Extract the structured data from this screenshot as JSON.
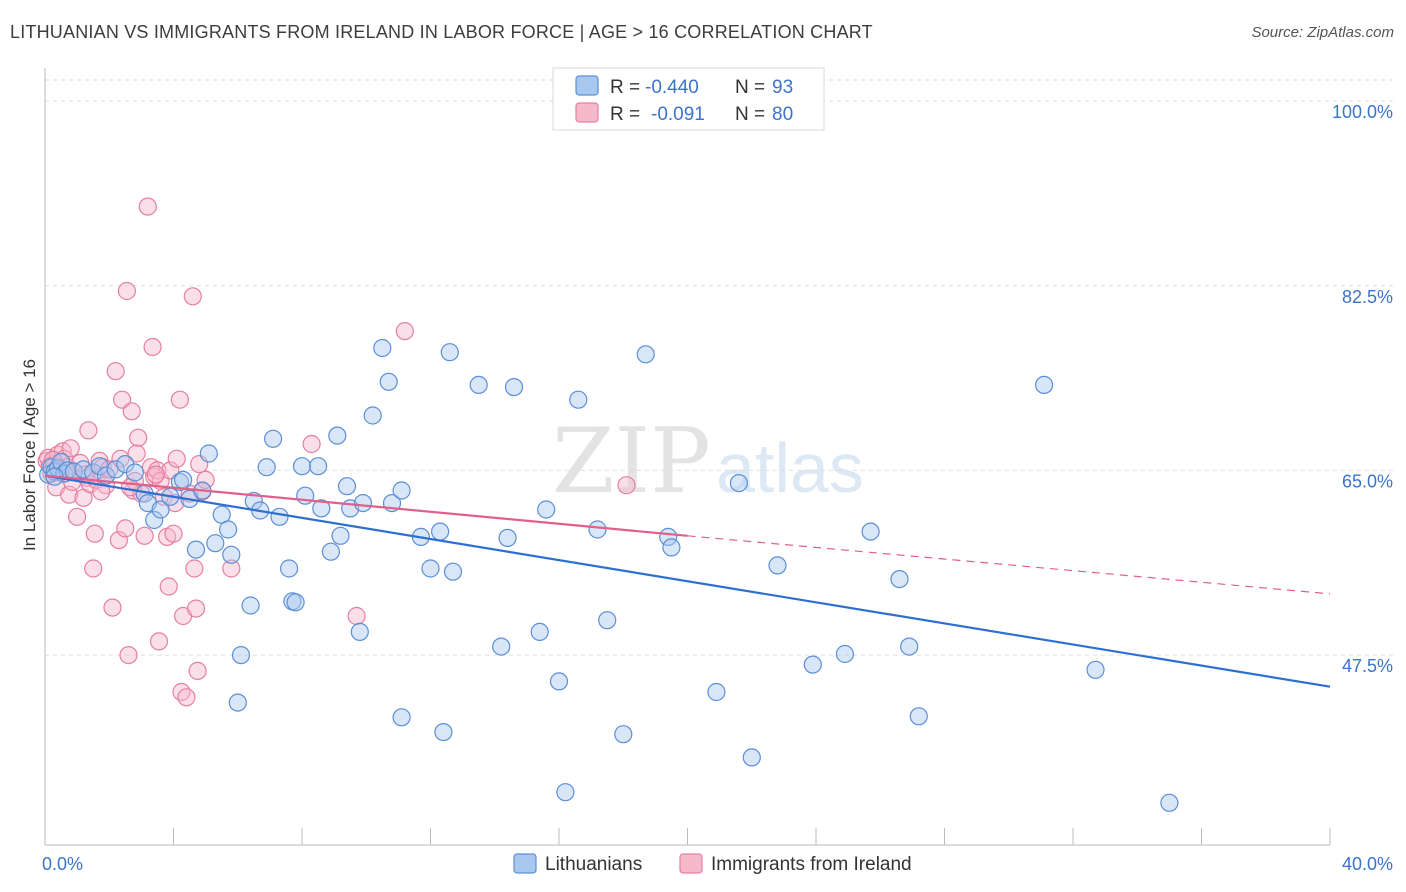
{
  "header": {
    "title": "LITHUANIAN VS IMMIGRANTS FROM IRELAND IN LABOR FORCE | AGE > 16 CORRELATION CHART",
    "source": "Source: ZipAtlas.com"
  },
  "colors": {
    "blue_fill": "#a9c8ef",
    "blue_stroke": "#5b8fd6",
    "blue_line": "#2d6fd0",
    "pink_fill": "#f6b9cc",
    "pink_stroke": "#e57fa1",
    "pink_line": "#e0608a",
    "grid": "#dddddd",
    "tick_text": "#3b74c8"
  },
  "watermark": {
    "part1": "ZIP",
    "part2": "atlas"
  },
  "legend": {
    "rows": [
      {
        "r_label": "R =",
        "r_value": "-0.440",
        "n_label": "N =",
        "n_value": "93"
      },
      {
        "r_label": "R =",
        "r_value": "-0.091",
        "n_label": "N =",
        "n_value": "80"
      }
    ]
  },
  "bottom_legend": {
    "items": [
      {
        "label": "Lithuanians"
      },
      {
        "label": "Immigrants from Ireland"
      }
    ]
  },
  "chart_data": {
    "type": "scatter",
    "title": "LITHUANIAN VS IMMIGRANTS FROM IRELAND IN LABOR FORCE | AGE > 16 CORRELATION CHART",
    "xlabel": "",
    "ylabel": "In Labor Force | Age > 16",
    "xlim": [
      0,
      40
    ],
    "ylim": [
      29.5,
      102
    ],
    "x_tick_labels": [
      "0.0%",
      "40.0%"
    ],
    "y_ticks": [
      47.5,
      65.0,
      82.5,
      100.0
    ],
    "y_tick_labels": [
      "47.5%",
      "65.0%",
      "82.5%",
      "100.0%"
    ],
    "grid": true,
    "series": [
      {
        "name": "Lithuanians",
        "color": "blue",
        "R": -0.44,
        "N": 93,
        "trend": {
          "x": [
            0.0,
            40.0
          ],
          "y": [
            64.5,
            44.5
          ]
        },
        "points": [
          [
            0.1,
            64.6
          ],
          [
            0.2,
            65.3
          ],
          [
            0.3,
            64.9
          ],
          [
            0.4,
            65.2
          ],
          [
            0.5,
            65.8
          ],
          [
            0.6,
            64.7
          ],
          [
            0.7,
            65.0
          ],
          [
            0.9,
            64.9
          ],
          [
            1.2,
            65.1
          ],
          [
            1.5,
            64.8
          ],
          [
            1.7,
            65.4
          ],
          [
            1.9,
            64.5
          ],
          [
            2.2,
            65.1
          ],
          [
            2.5,
            65.6
          ],
          [
            2.8,
            64.8
          ],
          [
            3.1,
            62.8
          ],
          [
            3.2,
            61.9
          ],
          [
            3.4,
            60.3
          ],
          [
            3.6,
            61.3
          ],
          [
            3.9,
            62.5
          ],
          [
            4.2,
            63.9
          ],
          [
            4.3,
            64.1
          ],
          [
            4.5,
            62.3
          ],
          [
            4.7,
            57.5
          ],
          [
            4.9,
            63.1
          ],
          [
            5.1,
            66.6
          ],
          [
            5.3,
            58.1
          ],
          [
            5.5,
            60.8
          ],
          [
            5.7,
            59.4
          ],
          [
            5.8,
            57.0
          ],
          [
            6.1,
            47.5
          ],
          [
            6.0,
            43.0
          ],
          [
            6.4,
            52.2
          ],
          [
            6.5,
            62.1
          ],
          [
            6.7,
            61.2
          ],
          [
            6.9,
            65.3
          ],
          [
            7.1,
            68.0
          ],
          [
            7.3,
            60.6
          ],
          [
            7.6,
            55.7
          ],
          [
            7.7,
            52.6
          ],
          [
            7.8,
            52.5
          ],
          [
            8.0,
            65.4
          ],
          [
            8.1,
            62.6
          ],
          [
            8.5,
            65.4
          ],
          [
            8.6,
            61.4
          ],
          [
            8.9,
            57.3
          ],
          [
            9.1,
            68.3
          ],
          [
            9.2,
            58.8
          ],
          [
            9.4,
            63.5
          ],
          [
            9.5,
            61.4
          ],
          [
            9.8,
            49.7
          ],
          [
            9.9,
            61.9
          ],
          [
            10.2,
            70.2
          ],
          [
            10.5,
            76.6
          ],
          [
            10.7,
            73.4
          ],
          [
            10.8,
            61.9
          ],
          [
            11.1,
            63.1
          ],
          [
            11.1,
            41.6
          ],
          [
            11.7,
            58.7
          ],
          [
            12.0,
            55.7
          ],
          [
            12.3,
            59.2
          ],
          [
            12.4,
            40.2
          ],
          [
            12.6,
            76.2
          ],
          [
            12.7,
            55.4
          ],
          [
            13.5,
            73.1
          ],
          [
            14.2,
            48.3
          ],
          [
            14.4,
            58.6
          ],
          [
            14.6,
            72.9
          ],
          [
            15.4,
            49.7
          ],
          [
            15.6,
            61.3
          ],
          [
            16.0,
            45.0
          ],
          [
            16.2,
            34.5
          ],
          [
            16.6,
            71.7
          ],
          [
            17.2,
            59.4
          ],
          [
            17.5,
            50.8
          ],
          [
            18.0,
            40.0
          ],
          [
            18.7,
            76.0
          ],
          [
            19.4,
            58.7
          ],
          [
            19.5,
            57.7
          ],
          [
            20.9,
            44.0
          ],
          [
            21.6,
            63.8
          ],
          [
            22.0,
            37.8
          ],
          [
            22.8,
            56.0
          ],
          [
            23.9,
            46.6
          ],
          [
            24.9,
            47.6
          ],
          [
            25.7,
            59.2
          ],
          [
            26.6,
            54.7
          ],
          [
            26.9,
            48.3
          ],
          [
            27.2,
            41.7
          ],
          [
            31.1,
            73.1
          ],
          [
            32.7,
            46.1
          ],
          [
            35.0,
            33.5
          ],
          [
            0.3,
            64.4
          ]
        ]
      },
      {
        "name": "Immigrants from Ireland",
        "color": "pink",
        "R": -0.091,
        "N": 80,
        "trend": {
          "x": [
            0.0,
            20.0
          ],
          "y": [
            64.5,
            58.8
          ]
        },
        "trend_dashed": {
          "x": [
            20.0,
            40.0
          ],
          "y": [
            58.8,
            53.3
          ]
        },
        "points": [
          [
            0.05,
            65.9
          ],
          [
            0.1,
            66.2
          ],
          [
            0.15,
            65.4
          ],
          [
            0.2,
            64.7
          ],
          [
            0.3,
            65.6
          ],
          [
            0.35,
            63.4
          ],
          [
            0.4,
            66.5
          ],
          [
            0.5,
            65.0
          ],
          [
            0.55,
            66.8
          ],
          [
            0.6,
            66.1
          ],
          [
            0.7,
            65.3
          ],
          [
            0.75,
            62.7
          ],
          [
            0.8,
            67.1
          ],
          [
            0.85,
            63.9
          ],
          [
            0.9,
            64.9
          ],
          [
            1.0,
            60.6
          ],
          [
            1.1,
            65.7
          ],
          [
            1.2,
            62.4
          ],
          [
            1.3,
            64.3
          ],
          [
            1.35,
            68.8
          ],
          [
            1.4,
            63.7
          ],
          [
            1.5,
            55.7
          ],
          [
            1.55,
            59.0
          ],
          [
            1.6,
            64.1
          ],
          [
            1.7,
            65.9
          ],
          [
            1.8,
            65.3
          ],
          [
            1.9,
            63.6
          ],
          [
            2.0,
            65.1
          ],
          [
            2.1,
            52.0
          ],
          [
            2.2,
            74.4
          ],
          [
            2.3,
            58.4
          ],
          [
            2.35,
            66.1
          ],
          [
            2.4,
            71.7
          ],
          [
            2.5,
            59.5
          ],
          [
            2.55,
            82.0
          ],
          [
            2.6,
            47.5
          ],
          [
            2.7,
            70.6
          ],
          [
            2.75,
            63.1
          ],
          [
            2.8,
            64.0
          ],
          [
            2.85,
            66.6
          ],
          [
            2.9,
            68.1
          ],
          [
            3.0,
            62.8
          ],
          [
            3.1,
            58.8
          ],
          [
            3.2,
            90.0
          ],
          [
            3.3,
            65.3
          ],
          [
            3.35,
            76.7
          ],
          [
            3.4,
            64.4
          ],
          [
            3.5,
            65.0
          ],
          [
            3.55,
            48.8
          ],
          [
            3.6,
            64.0
          ],
          [
            3.7,
            62.5
          ],
          [
            3.8,
            58.7
          ],
          [
            3.85,
            54.0
          ],
          [
            3.9,
            65.0
          ],
          [
            4.0,
            59.0
          ],
          [
            4.05,
            61.9
          ],
          [
            4.1,
            66.1
          ],
          [
            4.2,
            71.7
          ],
          [
            4.25,
            44.0
          ],
          [
            4.3,
            51.2
          ],
          [
            4.4,
            43.5
          ],
          [
            4.5,
            62.8
          ],
          [
            4.6,
            81.5
          ],
          [
            4.65,
            55.7
          ],
          [
            4.7,
            51.9
          ],
          [
            4.75,
            46.0
          ],
          [
            4.8,
            65.6
          ],
          [
            4.9,
            63.0
          ],
          [
            5.0,
            64.1
          ],
          [
            5.8,
            55.7
          ],
          [
            8.3,
            67.5
          ],
          [
            9.7,
            51.2
          ],
          [
            11.2,
            78.2
          ],
          [
            18.1,
            63.6
          ],
          [
            0.25,
            66.0
          ],
          [
            0.45,
            64.8
          ],
          [
            1.25,
            64.6
          ],
          [
            1.75,
            63.0
          ],
          [
            2.65,
            63.4
          ],
          [
            3.45,
            64.6
          ]
        ]
      }
    ]
  }
}
